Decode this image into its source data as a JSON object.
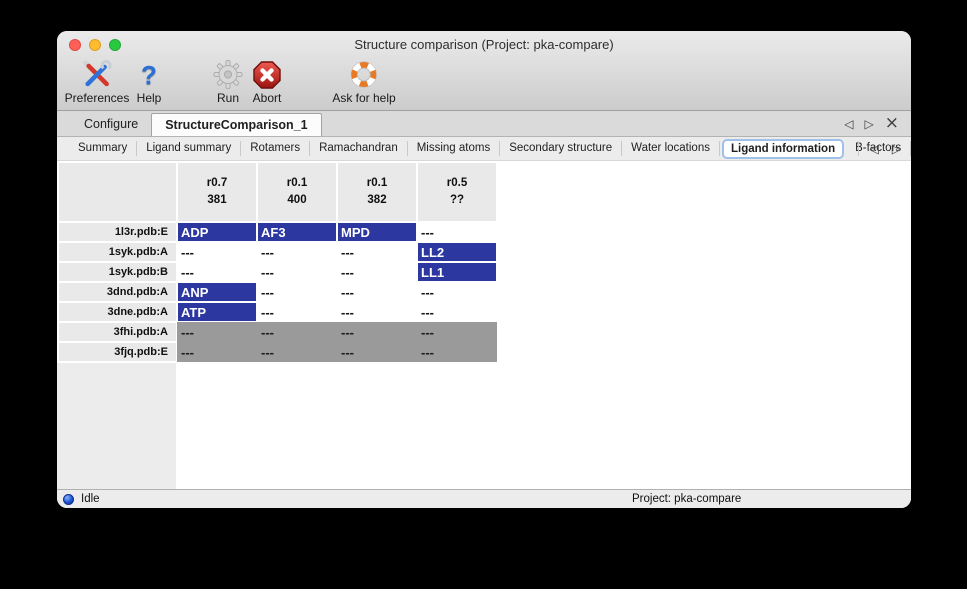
{
  "window": {
    "title": "Structure comparison (Project: pka-compare)"
  },
  "traffic_lights": [
    {
      "name": "close"
    },
    {
      "name": "minimize"
    },
    {
      "name": "zoom"
    }
  ],
  "toolbar": {
    "items": [
      {
        "label": "Preferences",
        "icon": "tools-icon"
      },
      {
        "label": "Help",
        "icon": "question-mark-icon"
      },
      {
        "label": "Run",
        "icon": "gear-icon"
      },
      {
        "label": "Abort",
        "icon": "stop-icon"
      },
      {
        "label": "Ask for help",
        "icon": "lifebuoy-icon"
      }
    ]
  },
  "tabbar": {
    "tabs": [
      {
        "label": "Configure",
        "selected": false
      },
      {
        "label": "StructureComparison_1",
        "selected": true
      }
    ],
    "nav": {
      "prev_glyph": "◁",
      "next_glyph": "▷",
      "close_glyph": "×"
    }
  },
  "subtabbar": {
    "tabs": [
      "Summary",
      "Ligand summary",
      "Rotamers",
      "Ramachandran",
      "Missing atoms",
      "Secondary structure",
      "Water locations",
      "Ligand information",
      "B-factors"
    ],
    "selected": "Ligand information",
    "nav": {
      "prev_glyph": "◁",
      "next_glyph": "▷"
    }
  },
  "table": {
    "column_headers": [
      {
        "line1": "r0.7",
        "line2": "381"
      },
      {
        "line1": "r0.1",
        "line2": "400"
      },
      {
        "line1": "r0.1",
        "line2": "382"
      },
      {
        "line1": "r0.5",
        "line2": "??"
      }
    ],
    "rows": [
      {
        "label": "1l3r.pdb:E",
        "cells": [
          {
            "text": "ADP",
            "state": "highlight"
          },
          {
            "text": "AF3",
            "state": "highlight"
          },
          {
            "text": "MPD",
            "state": "highlight"
          },
          {
            "text": "---",
            "state": "plain"
          }
        ]
      },
      {
        "label": "1syk.pdb:A",
        "cells": [
          {
            "text": "---",
            "state": "plain"
          },
          {
            "text": "---",
            "state": "plain"
          },
          {
            "text": "---",
            "state": "plain"
          },
          {
            "text": "LL2",
            "state": "highlight"
          }
        ]
      },
      {
        "label": "1syk.pdb:B",
        "cells": [
          {
            "text": "---",
            "state": "plain"
          },
          {
            "text": "---",
            "state": "plain"
          },
          {
            "text": "---",
            "state": "plain"
          },
          {
            "text": "LL1",
            "state": "highlight"
          }
        ]
      },
      {
        "label": "3dnd.pdb:A",
        "cells": [
          {
            "text": "ANP",
            "state": "highlight"
          },
          {
            "text": "---",
            "state": "plain"
          },
          {
            "text": "---",
            "state": "plain"
          },
          {
            "text": "---",
            "state": "plain"
          }
        ]
      },
      {
        "label": "3dne.pdb:A",
        "cells": [
          {
            "text": "ATP",
            "state": "highlight"
          },
          {
            "text": "---",
            "state": "plain"
          },
          {
            "text": "---",
            "state": "plain"
          },
          {
            "text": "---",
            "state": "plain"
          }
        ]
      },
      {
        "label": "3fhi.pdb:A",
        "cells": [
          {
            "text": "---",
            "state": "disabled"
          },
          {
            "text": "---",
            "state": "disabled"
          },
          {
            "text": "---",
            "state": "disabled"
          },
          {
            "text": "---",
            "state": "disabled"
          }
        ]
      },
      {
        "label": "3fjq.pdb:E",
        "cells": [
          {
            "text": "---",
            "state": "disabled"
          },
          {
            "text": "---",
            "state": "disabled"
          },
          {
            "text": "---",
            "state": "disabled"
          },
          {
            "text": "---",
            "state": "disabled"
          }
        ]
      }
    ]
  },
  "statusbar": {
    "status": "Idle",
    "project": "Project: pka-compare"
  },
  "colors": {
    "cell_highlight": "#2c38a0",
    "cell_disabled": "#9a9a9a",
    "traffic_close": "#ff5f57",
    "traffic_minimize": "#febc2e",
    "traffic_zoom": "#28c840",
    "status_dot": "#1d54d0",
    "subtab_selected_border": "#9fc0e8"
  }
}
